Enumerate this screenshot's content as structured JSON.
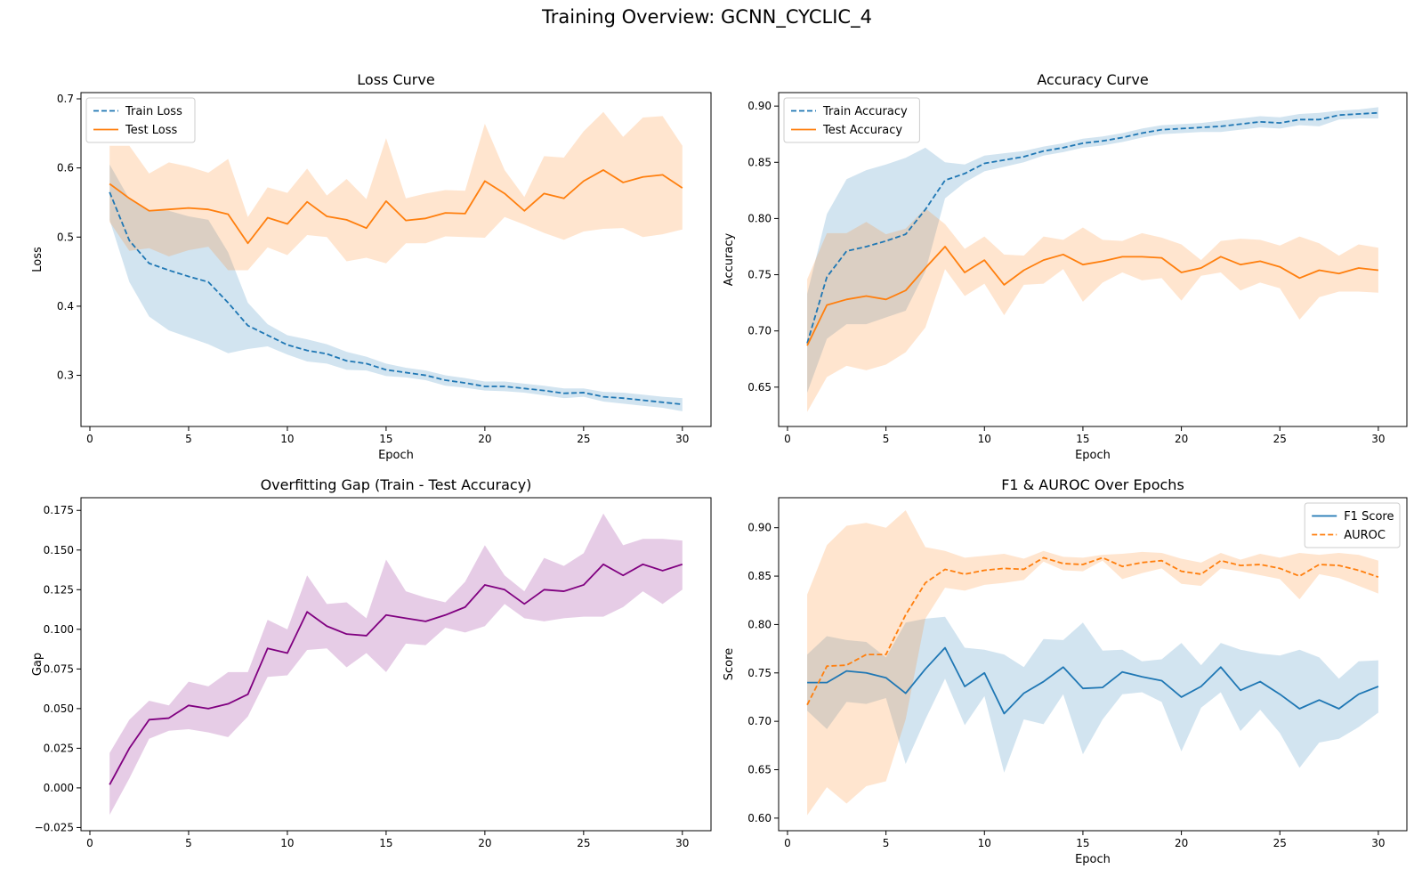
{
  "figure": {
    "title": "Training Overview: GCNN_CYCLIC_4"
  },
  "chart_data": [
    {
      "id": "loss",
      "type": "line",
      "title": "Loss Curve",
      "xlabel": "Epoch",
      "ylabel": "Loss",
      "xlim": [
        -0.45,
        31.45
      ],
      "ylim": [
        0.226,
        0.709
      ],
      "xticks": [
        0,
        5,
        10,
        15,
        20,
        25,
        30
      ],
      "yticks": [
        0.3,
        0.4,
        0.5,
        0.6,
        0.7
      ],
      "ytick_labels": [
        "0.3",
        "0.4",
        "0.5",
        "0.6",
        "0.7"
      ],
      "legend": "top-left",
      "grid": false,
      "x": [
        1,
        2,
        3,
        4,
        5,
        6,
        7,
        8,
        9,
        10,
        11,
        12,
        13,
        14,
        15,
        16,
        17,
        18,
        19,
        20,
        21,
        22,
        23,
        24,
        25,
        26,
        27,
        28,
        29,
        30
      ],
      "series": [
        {
          "name": "Train Loss",
          "color": "#1f77b4",
          "dash": "dashed",
          "values": [
            0.565,
            0.495,
            0.462,
            0.452,
            0.443,
            0.435,
            0.405,
            0.372,
            0.358,
            0.344,
            0.336,
            0.331,
            0.321,
            0.317,
            0.308,
            0.304,
            0.3,
            0.293,
            0.289,
            0.284,
            0.284,
            0.281,
            0.278,
            0.274,
            0.275,
            0.269,
            0.267,
            0.264,
            0.261,
            0.258
          ],
          "lower": [
            0.525,
            0.435,
            0.385,
            0.365,
            0.355,
            0.345,
            0.332,
            0.338,
            0.342,
            0.33,
            0.32,
            0.317,
            0.308,
            0.307,
            0.299,
            0.297,
            0.293,
            0.285,
            0.282,
            0.278,
            0.277,
            0.275,
            0.271,
            0.267,
            0.269,
            0.262,
            0.259,
            0.256,
            0.253,
            0.248
          ],
          "upper": [
            0.605,
            0.555,
            0.539,
            0.538,
            0.53,
            0.525,
            0.478,
            0.405,
            0.374,
            0.358,
            0.352,
            0.345,
            0.334,
            0.327,
            0.317,
            0.311,
            0.307,
            0.3,
            0.296,
            0.291,
            0.291,
            0.288,
            0.285,
            0.281,
            0.281,
            0.276,
            0.275,
            0.272,
            0.269,
            0.267
          ]
        },
        {
          "name": "Test Loss",
          "color": "#ff7f0e",
          "dash": "solid",
          "values": [
            0.577,
            0.556,
            0.538,
            0.54,
            0.542,
            0.54,
            0.533,
            0.491,
            0.528,
            0.519,
            0.551,
            0.53,
            0.525,
            0.513,
            0.552,
            0.524,
            0.527,
            0.535,
            0.534,
            0.581,
            0.563,
            0.538,
            0.563,
            0.556,
            0.581,
            0.597,
            0.579,
            0.587,
            0.59,
            0.571
          ],
          "lower": [
            0.522,
            0.48,
            0.484,
            0.472,
            0.481,
            0.486,
            0.452,
            0.452,
            0.485,
            0.474,
            0.503,
            0.5,
            0.465,
            0.47,
            0.462,
            0.491,
            0.491,
            0.501,
            0.5,
            0.499,
            0.529,
            0.518,
            0.506,
            0.496,
            0.508,
            0.512,
            0.513,
            0.5,
            0.504,
            0.511
          ],
          "upper": [
            0.632,
            0.632,
            0.592,
            0.608,
            0.602,
            0.593,
            0.613,
            0.529,
            0.572,
            0.564,
            0.599,
            0.56,
            0.584,
            0.555,
            0.643,
            0.556,
            0.563,
            0.568,
            0.567,
            0.664,
            0.597,
            0.558,
            0.617,
            0.615,
            0.653,
            0.681,
            0.645,
            0.673,
            0.675,
            0.632
          ]
        }
      ]
    },
    {
      "id": "accuracy",
      "type": "line",
      "title": "Accuracy Curve",
      "xlabel": "Epoch",
      "ylabel": "Accuracy",
      "xlim": [
        -0.45,
        31.45
      ],
      "ylim": [
        0.615,
        0.912
      ],
      "xticks": [
        0,
        5,
        10,
        15,
        20,
        25,
        30
      ],
      "yticks": [
        0.65,
        0.7,
        0.75,
        0.8,
        0.85,
        0.9
      ],
      "ytick_labels": [
        "0.65",
        "0.70",
        "0.75",
        "0.80",
        "0.85",
        "0.90"
      ],
      "legend": "top-left",
      "grid": false,
      "x": [
        1,
        2,
        3,
        4,
        5,
        6,
        7,
        8,
        9,
        10,
        11,
        12,
        13,
        14,
        15,
        16,
        17,
        18,
        19,
        20,
        21,
        22,
        23,
        24,
        25,
        26,
        27,
        28,
        29,
        30
      ],
      "series": [
        {
          "name": "Train Accuracy",
          "color": "#1f77b4",
          "dash": "dashed",
          "values": [
            0.689,
            0.748,
            0.771,
            0.775,
            0.78,
            0.786,
            0.808,
            0.834,
            0.84,
            0.849,
            0.852,
            0.855,
            0.86,
            0.863,
            0.867,
            0.869,
            0.872,
            0.876,
            0.879,
            0.88,
            0.881,
            0.882,
            0.884,
            0.886,
            0.885,
            0.888,
            0.888,
            0.892,
            0.893,
            0.894
          ],
          "lower": [
            0.645,
            0.693,
            0.706,
            0.706,
            0.712,
            0.718,
            0.753,
            0.818,
            0.832,
            0.842,
            0.846,
            0.85,
            0.856,
            0.859,
            0.863,
            0.865,
            0.868,
            0.872,
            0.875,
            0.876,
            0.877,
            0.877,
            0.879,
            0.881,
            0.88,
            0.883,
            0.882,
            0.888,
            0.889,
            0.889
          ],
          "upper": [
            0.733,
            0.804,
            0.835,
            0.843,
            0.848,
            0.854,
            0.863,
            0.85,
            0.848,
            0.856,
            0.858,
            0.86,
            0.864,
            0.867,
            0.871,
            0.873,
            0.876,
            0.88,
            0.883,
            0.884,
            0.885,
            0.887,
            0.889,
            0.891,
            0.89,
            0.893,
            0.894,
            0.896,
            0.897,
            0.899
          ]
        },
        {
          "name": "Test Accuracy",
          "color": "#ff7f0e",
          "dash": "solid",
          "values": [
            0.687,
            0.723,
            0.728,
            0.731,
            0.728,
            0.736,
            0.756,
            0.775,
            0.752,
            0.763,
            0.741,
            0.754,
            0.763,
            0.768,
            0.759,
            0.762,
            0.766,
            0.766,
            0.765,
            0.752,
            0.756,
            0.766,
            0.759,
            0.762,
            0.757,
            0.747,
            0.754,
            0.751,
            0.756,
            0.754
          ],
          "lower": [
            0.628,
            0.659,
            0.669,
            0.665,
            0.67,
            0.681,
            0.703,
            0.755,
            0.731,
            0.742,
            0.714,
            0.741,
            0.742,
            0.755,
            0.726,
            0.743,
            0.752,
            0.745,
            0.747,
            0.727,
            0.749,
            0.752,
            0.736,
            0.743,
            0.738,
            0.71,
            0.73,
            0.735,
            0.735,
            0.734
          ],
          "upper": [
            0.746,
            0.787,
            0.787,
            0.797,
            0.786,
            0.791,
            0.809,
            0.795,
            0.773,
            0.784,
            0.768,
            0.767,
            0.784,
            0.781,
            0.792,
            0.781,
            0.78,
            0.787,
            0.783,
            0.777,
            0.763,
            0.78,
            0.782,
            0.781,
            0.776,
            0.784,
            0.778,
            0.767,
            0.777,
            0.774
          ]
        }
      ]
    },
    {
      "id": "gap",
      "type": "line",
      "title": "Overfitting Gap (Train - Test Accuracy)",
      "xlabel": "",
      "ylabel": "Gap",
      "xlim": [
        -0.45,
        31.45
      ],
      "ylim": [
        -0.027,
        0.183
      ],
      "xticks": [
        0,
        5,
        10,
        15,
        20,
        25,
        30
      ],
      "yticks": [
        -0.025,
        0.0,
        0.025,
        0.05,
        0.075,
        0.1,
        0.125,
        0.15,
        0.175
      ],
      "ytick_labels": [
        "−0.025",
        "0.000",
        "0.025",
        "0.050",
        "0.075",
        "0.100",
        "0.125",
        "0.150",
        "0.175"
      ],
      "legend": "none",
      "grid": false,
      "x": [
        1,
        2,
        3,
        4,
        5,
        6,
        7,
        8,
        9,
        10,
        11,
        12,
        13,
        14,
        15,
        16,
        17,
        18,
        19,
        20,
        21,
        22,
        23,
        24,
        25,
        26,
        27,
        28,
        29,
        30
      ],
      "series": [
        {
          "name": "",
          "color": "#800080",
          "dash": "solid",
          "values": [
            0.002,
            0.025,
            0.043,
            0.044,
            0.052,
            0.05,
            0.053,
            0.059,
            0.088,
            0.085,
            0.111,
            0.102,
            0.097,
            0.096,
            0.109,
            0.107,
            0.105,
            0.109,
            0.114,
            0.128,
            0.125,
            0.116,
            0.125,
            0.124,
            0.128,
            0.141,
            0.134,
            0.141,
            0.137,
            0.141
          ],
          "lower": [
            -0.017,
            0.006,
            0.031,
            0.036,
            0.037,
            0.035,
            0.032,
            0.045,
            0.07,
            0.071,
            0.087,
            0.088,
            0.076,
            0.085,
            0.073,
            0.091,
            0.09,
            0.101,
            0.098,
            0.102,
            0.116,
            0.107,
            0.105,
            0.107,
            0.108,
            0.108,
            0.114,
            0.124,
            0.116,
            0.125
          ],
          "upper": [
            0.022,
            0.043,
            0.055,
            0.052,
            0.067,
            0.064,
            0.073,
            0.073,
            0.106,
            0.1,
            0.134,
            0.116,
            0.117,
            0.107,
            0.144,
            0.124,
            0.12,
            0.117,
            0.13,
            0.153,
            0.134,
            0.124,
            0.145,
            0.14,
            0.148,
            0.173,
            0.153,
            0.157,
            0.157,
            0.156
          ]
        }
      ]
    },
    {
      "id": "f1auroc",
      "type": "line",
      "title": "F1 & AUROC Over Epochs",
      "xlabel": "Epoch",
      "ylabel": "Score",
      "xlim": [
        -0.45,
        31.45
      ],
      "ylim": [
        0.587,
        0.931
      ],
      "xticks": [
        0,
        5,
        10,
        15,
        20,
        25,
        30
      ],
      "yticks": [
        0.6,
        0.65,
        0.7,
        0.75,
        0.8,
        0.85,
        0.9
      ],
      "ytick_labels": [
        "0.60",
        "0.65",
        "0.70",
        "0.75",
        "0.80",
        "0.85",
        "0.90"
      ],
      "legend": "top-right",
      "grid": false,
      "x": [
        1,
        2,
        3,
        4,
        5,
        6,
        7,
        8,
        9,
        10,
        11,
        12,
        13,
        14,
        15,
        16,
        17,
        18,
        19,
        20,
        21,
        22,
        23,
        24,
        25,
        26,
        27,
        28,
        29,
        30
      ],
      "series": [
        {
          "name": "F1 Score",
          "color": "#1f77b4",
          "dash": "solid",
          "values": [
            0.74,
            0.74,
            0.752,
            0.75,
            0.745,
            0.729,
            0.754,
            0.776,
            0.736,
            0.75,
            0.708,
            0.729,
            0.741,
            0.756,
            0.734,
            0.735,
            0.751,
            0.746,
            0.742,
            0.725,
            0.736,
            0.756,
            0.732,
            0.741,
            0.728,
            0.713,
            0.722,
            0.713,
            0.728,
            0.736
          ],
          "lower": [
            0.711,
            0.692,
            0.72,
            0.718,
            0.724,
            0.656,
            0.702,
            0.744,
            0.696,
            0.726,
            0.647,
            0.702,
            0.697,
            0.728,
            0.666,
            0.702,
            0.728,
            0.73,
            0.72,
            0.669,
            0.714,
            0.73,
            0.69,
            0.712,
            0.688,
            0.652,
            0.678,
            0.682,
            0.694,
            0.709
          ],
          "upper": [
            0.769,
            0.788,
            0.784,
            0.782,
            0.766,
            0.802,
            0.806,
            0.808,
            0.776,
            0.774,
            0.769,
            0.756,
            0.785,
            0.784,
            0.802,
            0.773,
            0.774,
            0.762,
            0.764,
            0.781,
            0.758,
            0.781,
            0.774,
            0.77,
            0.768,
            0.774,
            0.766,
            0.744,
            0.762,
            0.763
          ]
        },
        {
          "name": "AUROC",
          "color": "#ff7f0e",
          "dash": "dashed",
          "values": [
            0.717,
            0.757,
            0.758,
            0.769,
            0.769,
            0.81,
            0.843,
            0.857,
            0.852,
            0.856,
            0.858,
            0.857,
            0.869,
            0.863,
            0.862,
            0.869,
            0.86,
            0.864,
            0.866,
            0.855,
            0.852,
            0.866,
            0.861,
            0.862,
            0.858,
            0.85,
            0.862,
            0.861,
            0.856,
            0.849
          ],
          "lower": [
            0.603,
            0.632,
            0.615,
            0.633,
            0.638,
            0.702,
            0.806,
            0.838,
            0.835,
            0.841,
            0.843,
            0.846,
            0.865,
            0.856,
            0.855,
            0.866,
            0.847,
            0.853,
            0.858,
            0.842,
            0.84,
            0.858,
            0.855,
            0.851,
            0.847,
            0.826,
            0.852,
            0.848,
            0.84,
            0.832
          ],
          "upper": [
            0.831,
            0.882,
            0.902,
            0.905,
            0.9,
            0.918,
            0.88,
            0.876,
            0.869,
            0.871,
            0.873,
            0.868,
            0.876,
            0.87,
            0.869,
            0.872,
            0.873,
            0.875,
            0.874,
            0.868,
            0.864,
            0.874,
            0.867,
            0.873,
            0.869,
            0.874,
            0.872,
            0.874,
            0.872,
            0.866
          ]
        }
      ]
    }
  ]
}
